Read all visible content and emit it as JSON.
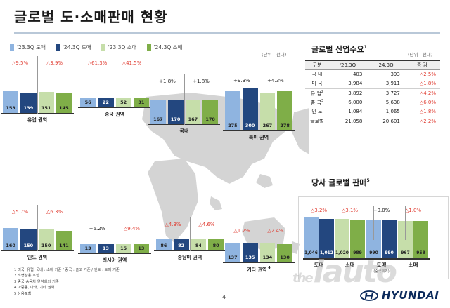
{
  "title": "글로벌 도·소매판매 현황",
  "legend": [
    {
      "label": "'23.3Q 도매",
      "color": "#8fb4e0"
    },
    {
      "label": "'24.3Q 도매",
      "color": "#23477f"
    },
    {
      "label": "'23.3Q 소매",
      "color": "#c6deaa"
    },
    {
      "label": "'24.3Q 소매",
      "color": "#7fae48"
    }
  ],
  "unit_left": "(단위 : 천대)",
  "unit_right": "(단위 : 천대)",
  "regions": [
    {
      "name": "유럽 권역",
      "wholesale": [
        153,
        139
      ],
      "retail": [
        151,
        145
      ],
      "wholesale_change": "△9.5%",
      "retail_change": "△3.9%",
      "wholesale_neg": true,
      "retail_neg": true
    },
    {
      "name": "중국 권역",
      "wholesale": [
        56,
        22
      ],
      "retail": [
        52,
        31
      ],
      "wholesale_change": "△61.3%",
      "retail_change": "△41.5%",
      "wholesale_neg": true,
      "retail_neg": true
    },
    {
      "name": "국내",
      "wholesale": [
        167,
        170
      ],
      "retail": [
        167,
        170
      ],
      "wholesale_change": "+1.8%",
      "retail_change": "+1.8%",
      "wholesale_neg": false,
      "retail_neg": false
    },
    {
      "name": "북미 권역",
      "wholesale": [
        275,
        300
      ],
      "retail": [
        267,
        278
      ],
      "wholesale_change": "+9.3%",
      "retail_change": "+4.3%",
      "wholesale_neg": false,
      "retail_neg": false
    },
    {
      "name": "인도 권역",
      "wholesale": [
        160,
        150
      ],
      "retail": [
        150,
        141
      ],
      "wholesale_change": "△5.7%",
      "retail_change": "△6.3%",
      "wholesale_neg": true,
      "retail_neg": true
    },
    {
      "name": "러시아 권역",
      "wholesale": [
        13,
        13
      ],
      "retail": [
        15,
        13
      ],
      "wholesale_change": "+6.2%",
      "retail_change": "△9.4%",
      "wholesale_neg": false,
      "retail_neg": true
    },
    {
      "name": "중남미 권역",
      "wholesale": [
        86,
        82
      ],
      "retail": [
        84,
        80
      ],
      "wholesale_change": "△4.3%",
      "retail_change": "△4.6%",
      "wholesale_neg": true,
      "retail_neg": true
    },
    {
      "name": "기타 권역",
      "name_sup": "4",
      "wholesale": [
        137,
        135
      ],
      "retail": [
        134,
        130
      ],
      "wholesale_change": "△1.2%",
      "retail_change": "△2.4%",
      "wholesale_neg": true,
      "retail_neg": true
    }
  ],
  "demand": {
    "title": "글로벌 산업수요",
    "title_sup": "1",
    "headers": [
      "구분",
      "'23.3Q",
      "'24.3Q",
      "증 감"
    ],
    "rows": [
      {
        "label": "국 내",
        "sup": "",
        "v1": "403",
        "v2": "393",
        "chg": "△2.5%",
        "neg": true
      },
      {
        "label": "미 국",
        "sup": "",
        "v1": "3,984",
        "v2": "3,911",
        "chg": "△1.8%",
        "neg": true
      },
      {
        "label": "유 럽",
        "sup": "2",
        "v1": "3,892",
        "v2": "3,727",
        "chg": "△4.2%",
        "neg": true
      },
      {
        "label": "중 국",
        "sup": "3",
        "v1": "6,000",
        "v2": "5,638",
        "chg": "△6.0%",
        "neg": true
      },
      {
        "label": "인 도",
        "sup": "",
        "v1": "1,084",
        "v2": "1,065",
        "chg": "△1.8%",
        "neg": true
      }
    ],
    "total": {
      "label": "글로벌",
      "v1": "21,058",
      "v2": "20,601",
      "chg": "△2.2%",
      "neg": true
    }
  },
  "own_sales": {
    "title": "당사 글로벌 판매",
    "title_sup": "5",
    "groups": [
      {
        "label": "도매",
        "sub": "",
        "values": [
          1046,
          1012
        ],
        "labels": [
          "1,046",
          "1,012"
        ],
        "change": "△3.2%",
        "neg": true,
        "kind": "wholesale"
      },
      {
        "label": "소매",
        "sub": "",
        "values": [
          1020,
          989
        ],
        "labels": [
          "1,020",
          "989"
        ],
        "change": "△3.1%",
        "neg": true,
        "kind": "retail"
      },
      {
        "label": "도매",
        "sub": "(중국제외)",
        "values": [
          990,
          990
        ],
        "labels": [
          "990",
          "990"
        ],
        "change": "+0.0%",
        "neg": false,
        "kind": "wholesale"
      },
      {
        "label": "소매",
        "sub": "",
        "values": [
          967,
          958
        ],
        "labels": [
          "967",
          "958"
        ],
        "change": "△1.0%",
        "neg": true,
        "kind": "retail"
      }
    ]
  },
  "footnotes": [
    "1 미국, 유럽, 국내 : 소매 기준 / 중국 : 출고 기준 / 인도 : 도매 기준",
    "2 소형상용 포함",
    "3 중국 승용차 연석회의 기준",
    "4 아중동, 아태, 기타 권역",
    "5 상용포함"
  ],
  "page_number": "4",
  "watermark": {
    "small": "the",
    "big": "iauto"
  },
  "brand": "HYUNDAI"
}
